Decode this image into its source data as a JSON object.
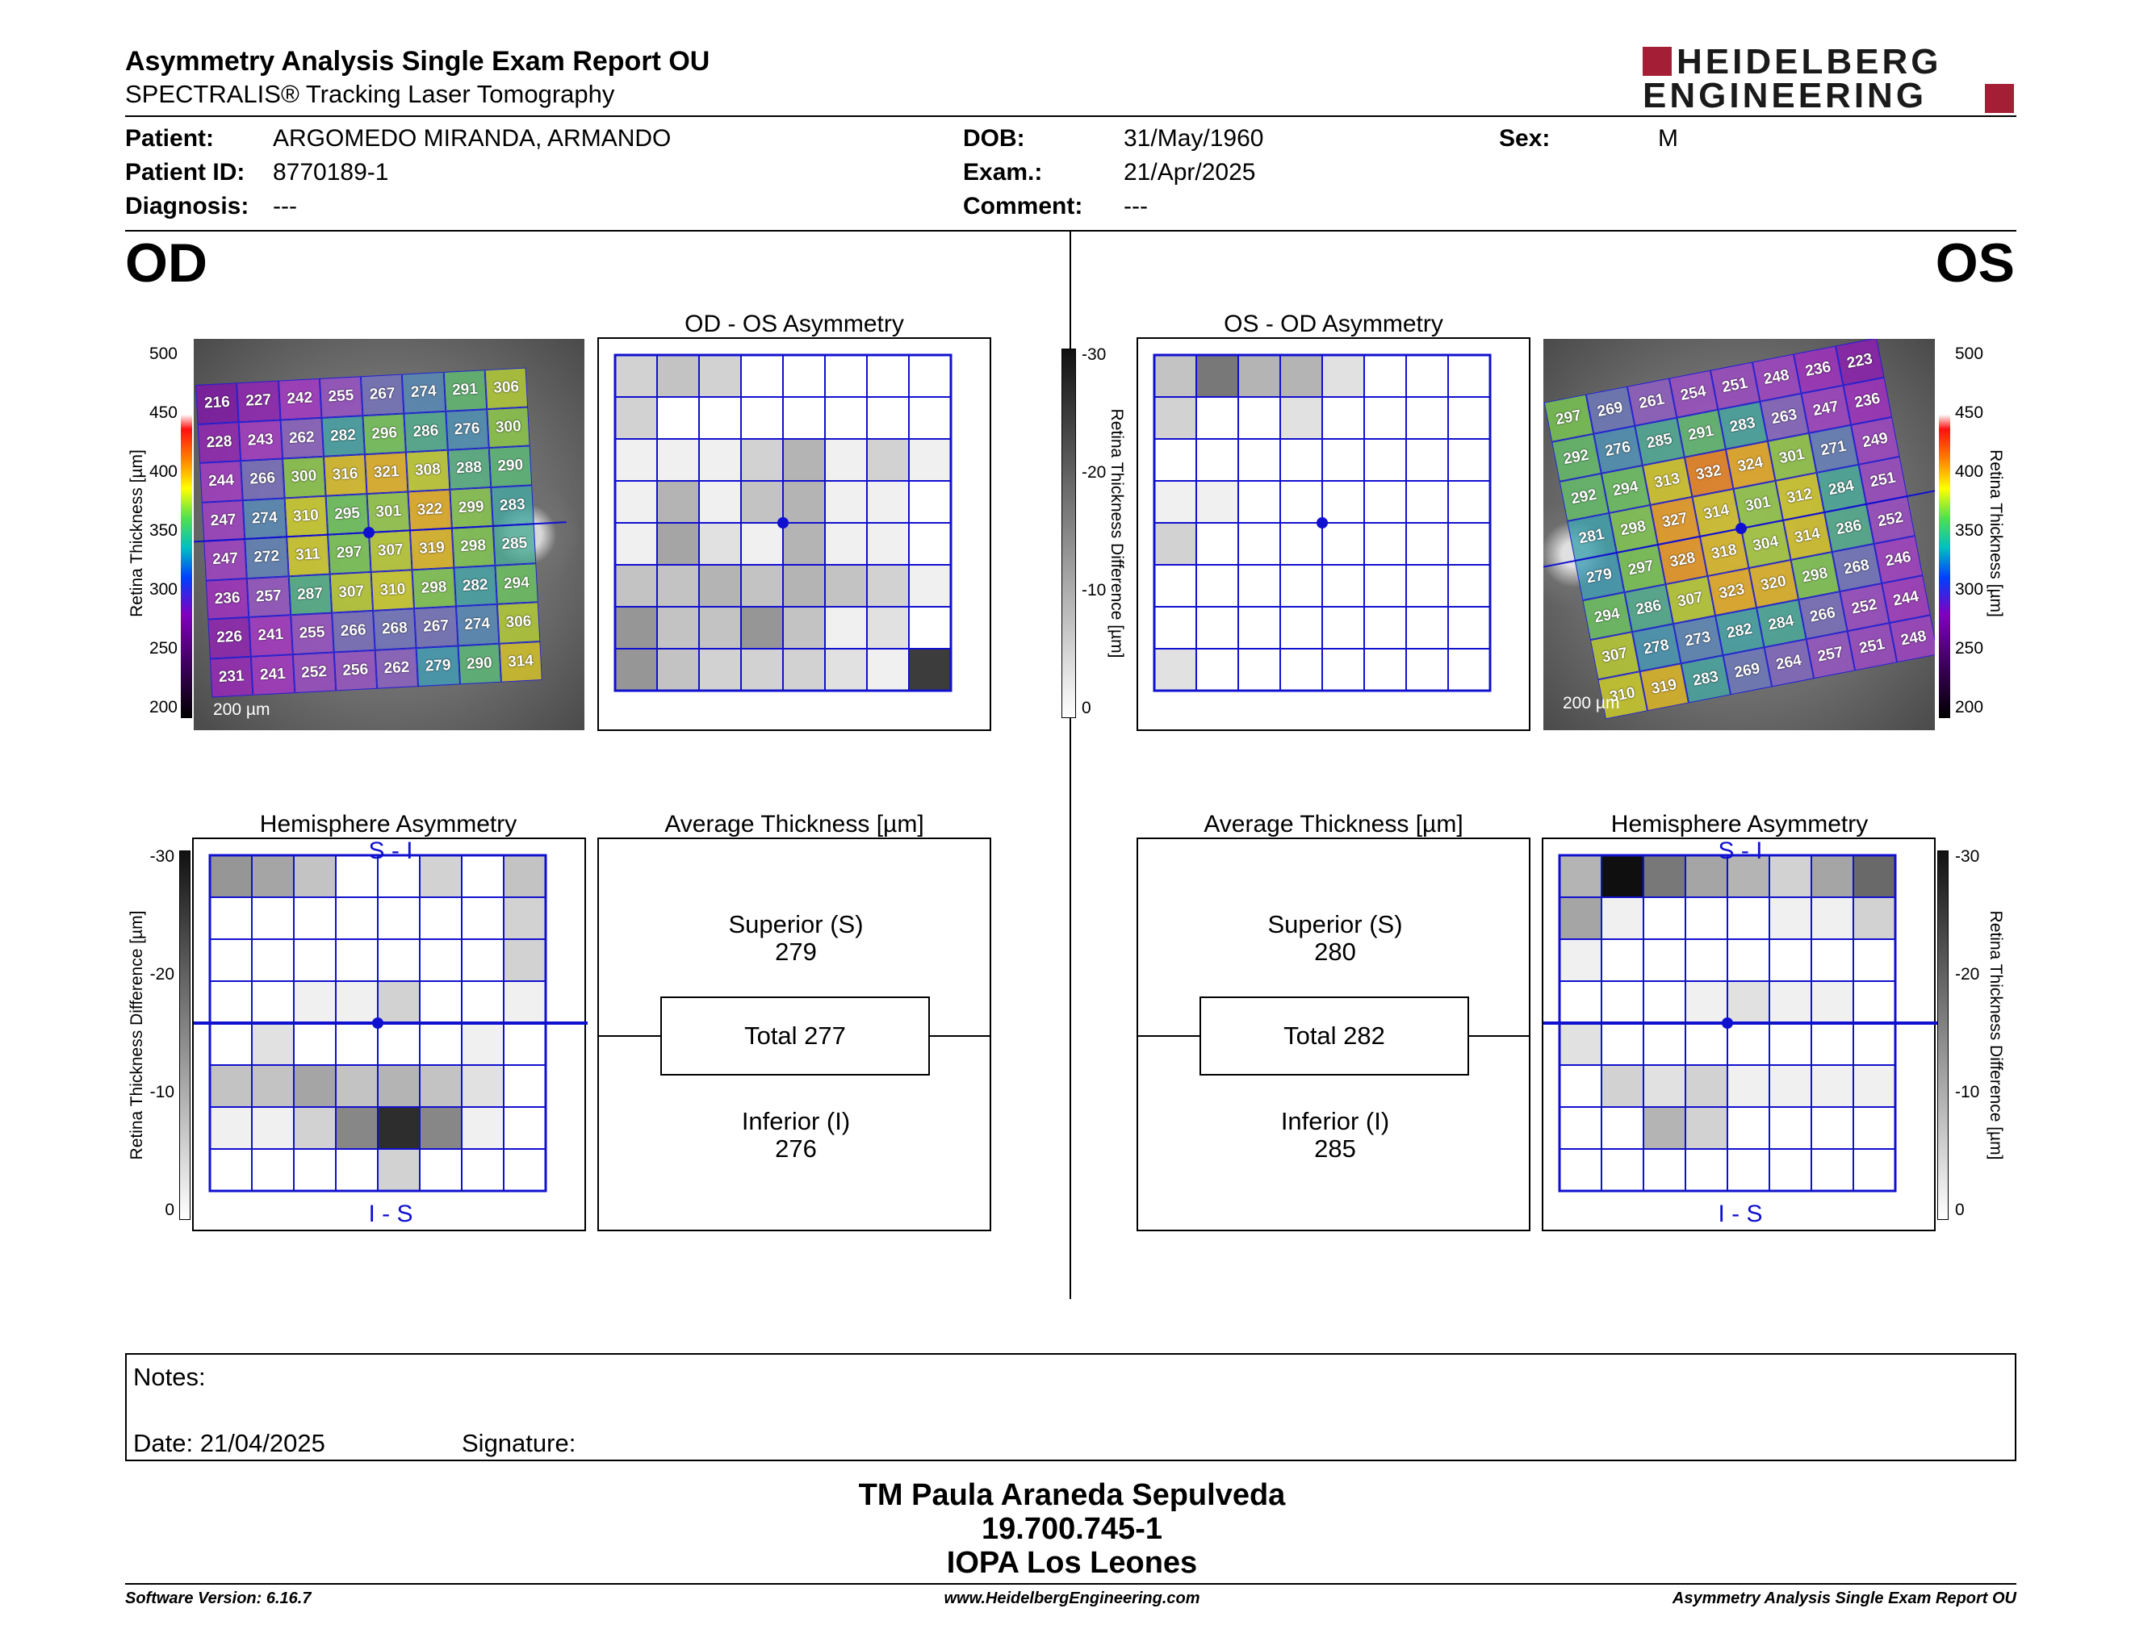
{
  "header": {
    "title": "Asymmetry Analysis Single Exam Report OU",
    "subtitle": "SPECTRALIS® Tracking Laser Tomography",
    "logo_line1": "HEIDELBERG",
    "logo_line2": "ENGINEERING",
    "brand_color": "#a41f35"
  },
  "patient": {
    "patient_label": "Patient:",
    "patient_value": "ARGOMEDO MIRANDA, ARMANDO",
    "id_label": "Patient ID:",
    "id_value": "8770189-1",
    "diagnosis_label": "Diagnosis:",
    "diagnosis_value": "---",
    "dob_label": "DOB:",
    "dob_value": "31/May/1960",
    "exam_label": "Exam.:",
    "exam_value": "21/Apr/2025",
    "comment_label": "Comment:",
    "comment_value": "---",
    "sex_label": "Sex:",
    "sex_value": "M"
  },
  "eyes": {
    "od": "OD",
    "os": "OS"
  },
  "panels": {
    "od_asym_title": "OD - OS Asymmetry",
    "os_asym_title": "OS - OD Asymmetry",
    "hemi_title": "Hemisphere Asymmetry",
    "avg_title": "Average Thickness [µm]",
    "s_i": "S - I",
    "i_s": "I - S",
    "scale_label": "200 µm",
    "thickness_axis": "Retina Thickness [µm]",
    "diff_axis": "Retina Thickness Difference [µm]",
    "thickness_ticks": [
      "500",
      "450",
      "400",
      "350",
      "300",
      "250",
      "200"
    ],
    "diff_ticks": [
      "-30",
      "-20",
      "-10",
      "0"
    ]
  },
  "od": {
    "superior_label": "Superior (S)",
    "superior_value": "279",
    "total_label": "Total 277",
    "inferior_label": "Inferior (I)",
    "inferior_value": "276",
    "thickness_grid": [
      [
        216,
        227,
        242,
        255,
        267,
        274,
        291,
        306
      ],
      [
        228,
        243,
        262,
        282,
        296,
        286,
        276,
        300
      ],
      [
        244,
        266,
        300,
        316,
        321,
        308,
        288,
        290
      ],
      [
        247,
        274,
        310,
        295,
        301,
        322,
        299,
        283
      ],
      [
        247,
        272,
        311,
        297,
        307,
        319,
        298,
        285
      ],
      [
        236,
        257,
        287,
        307,
        310,
        298,
        282,
        294
      ],
      [
        226,
        241,
        255,
        266,
        268,
        267,
        274,
        306
      ],
      [
        231,
        241,
        252,
        256,
        262,
        279,
        290,
        314
      ]
    ],
    "asym_grid": [
      [
        3,
        4,
        3,
        0,
        0,
        0,
        0,
        0
      ],
      [
        3,
        0,
        0,
        0,
        0,
        0,
        0,
        0
      ],
      [
        1,
        1,
        1,
        3,
        5,
        1,
        3,
        1
      ],
      [
        1,
        5,
        1,
        4,
        5,
        1,
        1,
        0
      ],
      [
        1,
        6,
        2,
        1,
        5,
        1,
        1,
        0
      ],
      [
        4,
        4,
        5,
        4,
        5,
        4,
        3,
        1
      ],
      [
        7,
        4,
        4,
        7,
        4,
        1,
        2,
        0
      ],
      [
        7,
        4,
        3,
        3,
        3,
        2,
        1,
        13
      ]
    ],
    "hemi_grid": [
      [
        7,
        6,
        4,
        0,
        0,
        3,
        0,
        4
      ],
      [
        0,
        0,
        0,
        0,
        0,
        0,
        0,
        3
      ],
      [
        0,
        0,
        0,
        0,
        0,
        0,
        0,
        3
      ],
      [
        0,
        0,
        1,
        1,
        3,
        0,
        0,
        1
      ],
      [
        0,
        2,
        0,
        0,
        0,
        0,
        1,
        0
      ],
      [
        4,
        4,
        6,
        4,
        5,
        4,
        2,
        0
      ],
      [
        1,
        1,
        3,
        8,
        14,
        8,
        1,
        0
      ],
      [
        0,
        0,
        0,
        0,
        3,
        0,
        0,
        0
      ]
    ]
  },
  "os": {
    "superior_label": "Superior (S)",
    "superior_value": "280",
    "total_label": "Total 282",
    "inferior_label": "Inferior (I)",
    "inferior_value": "285",
    "thickness_grid": [
      [
        297,
        269,
        261,
        254,
        251,
        248,
        236,
        223
      ],
      [
        292,
        276,
        285,
        291,
        283,
        263,
        247,
        236
      ],
      [
        292,
        294,
        313,
        332,
        324,
        301,
        271,
        249
      ],
      [
        281,
        298,
        327,
        314,
        301,
        312,
        284,
        251
      ],
      [
        279,
        297,
        328,
        318,
        304,
        314,
        286,
        252
      ],
      [
        294,
        286,
        307,
        323,
        320,
        298,
        268,
        246
      ],
      [
        307,
        278,
        273,
        282,
        284,
        266,
        252,
        244
      ],
      [
        310,
        319,
        283,
        269,
        264,
        257,
        251,
        248
      ]
    ],
    "asym_grid": [
      [
        4,
        9,
        5,
        5,
        2,
        0,
        0,
        0
      ],
      [
        3,
        0,
        0,
        2,
        0,
        0,
        0,
        0
      ],
      [
        0,
        0,
        0,
        0,
        0,
        0,
        0,
        0
      ],
      [
        1,
        1,
        0,
        0,
        0,
        0,
        0,
        0
      ],
      [
        3,
        0,
        0,
        0,
        0,
        0,
        0,
        0
      ],
      [
        0,
        0,
        0,
        0,
        0,
        0,
        0,
        0
      ],
      [
        0,
        0,
        0,
        0,
        0,
        0,
        0,
        0
      ],
      [
        2,
        0,
        0,
        0,
        0,
        0,
        0,
        0
      ]
    ],
    "hemi_grid": [
      [
        5,
        16,
        9,
        6,
        5,
        3,
        6,
        10
      ],
      [
        6,
        1,
        0,
        0,
        0,
        1,
        1,
        3
      ],
      [
        1,
        0,
        0,
        0,
        0,
        0,
        0,
        0
      ],
      [
        0,
        0,
        0,
        1,
        2,
        1,
        1,
        0
      ],
      [
        2,
        0,
        0,
        0,
        0,
        0,
        0,
        0
      ],
      [
        0,
        3,
        2,
        3,
        1,
        1,
        1,
        1
      ],
      [
        0,
        0,
        5,
        3,
        0,
        0,
        0,
        0
      ],
      [
        0,
        0,
        0,
        0,
        0,
        0,
        0,
        0
      ]
    ]
  },
  "notes": {
    "notes_label": "Notes:",
    "date_label": "Date: 21/04/2025",
    "signature_label": "Signature:"
  },
  "footer": {
    "name": "TM Paula Araneda Sepulveda",
    "rut": "19.700.745-1",
    "org": "IOPA Los Leones",
    "software": "Software Version: 6.16.7",
    "website": "www.HeidelbergEngineering.com",
    "report": "Asymmetry Analysis Single Exam Report OU"
  }
}
